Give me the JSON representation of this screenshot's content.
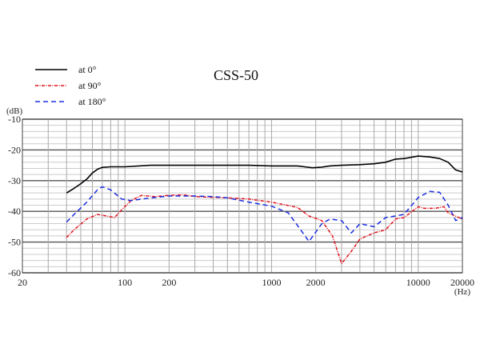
{
  "chart_data": {
    "type": "line",
    "title": "CSS-50",
    "xlabel": "(Hz)",
    "ylabel": "(dB)",
    "xscale": "log",
    "xlim": [
      20,
      20000
    ],
    "ylim": [
      -60,
      -10
    ],
    "x_ticks": [
      20,
      100,
      200,
      1000,
      2000,
      10000,
      20000
    ],
    "x_tick_labels": [
      "20",
      "100",
      "200",
      "1000",
      "2000",
      "10000",
      "20000"
    ],
    "y_ticks": [
      -10,
      -20,
      -30,
      -40,
      -50,
      -60
    ],
    "y_tick_labels": [
      "-10",
      "-20",
      "-30",
      "-40",
      "-50",
      "-60"
    ],
    "grid": true,
    "legend_position": "top-left",
    "series": [
      {
        "name": "at 0°",
        "color": "#000000",
        "dash": "solid",
        "x": [
          40,
          45,
          50,
          55,
          60,
          65,
          70,
          80,
          100,
          150,
          200,
          300,
          400,
          500,
          700,
          1000,
          1500,
          1900,
          2200,
          2500,
          3000,
          4000,
          5000,
          6000,
          7000,
          8000,
          10000,
          12000,
          14000,
          16000,
          18000,
          20000
        ],
        "y": [
          -34,
          -32.5,
          -31,
          -29.5,
          -27.5,
          -26.3,
          -25.7,
          -25.5,
          -25.5,
          -25,
          -25,
          -25,
          -25,
          -25,
          -25,
          -25.2,
          -25.2,
          -25.8,
          -25.6,
          -25.2,
          -25,
          -24.8,
          -24.5,
          -24,
          -23,
          -22.8,
          -22,
          -22.3,
          -22.8,
          -24,
          -26.5,
          -27.2
        ]
      },
      {
        "name": "at 90°",
        "color": "#e0101a",
        "dash": "dashdot",
        "x": [
          40,
          45,
          55,
          65,
          75,
          85,
          95,
          110,
          130,
          160,
          200,
          250,
          300,
          500,
          700,
          1000,
          1500,
          1800,
          2200,
          2600,
          3000,
          3500,
          4000,
          5000,
          6000,
          7000,
          8000,
          10000,
          11000,
          13000,
          15000,
          16000,
          20000
        ],
        "y": [
          -48.5,
          -46,
          -42.5,
          -41,
          -41.5,
          -42,
          -39.5,
          -36.5,
          -34.8,
          -35.2,
          -34.8,
          -34.6,
          -35.2,
          -35.6,
          -36,
          -37,
          -38.7,
          -41.5,
          -43,
          -48,
          -57,
          -53,
          -49,
          -47,
          -46,
          -42.5,
          -42,
          -38.5,
          -39,
          -39,
          -38.5,
          -40.5,
          -42.5
        ]
      },
      {
        "name": "at 180°",
        "color": "#1a2ee0",
        "dash": "dashed",
        "x": [
          40,
          45,
          55,
          65,
          70,
          80,
          95,
          110,
          130,
          160,
          200,
          300,
          400,
          500,
          700,
          1000,
          1300,
          1800,
          2200,
          2500,
          3000,
          3500,
          4000,
          5000,
          6000,
          7000,
          8000,
          10000,
          12000,
          14000,
          16000,
          18000,
          20000
        ],
        "y": [
          -43.5,
          -41,
          -37,
          -33,
          -32,
          -33,
          -36,
          -36.5,
          -36,
          -35.5,
          -35,
          -35,
          -35.2,
          -35.6,
          -37,
          -38.3,
          -40.5,
          -49.8,
          -44,
          -42.5,
          -43,
          -47,
          -44,
          -45,
          -42,
          -41.5,
          -41,
          -35.5,
          -33.5,
          -33.8,
          -38,
          -43,
          -42
        ]
      }
    ]
  }
}
